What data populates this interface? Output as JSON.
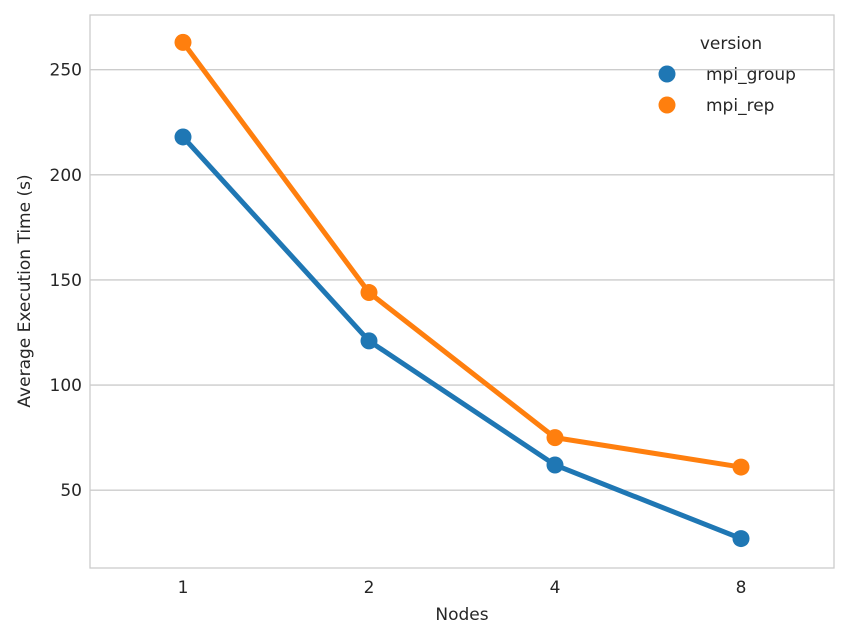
{
  "chart_data": {
    "type": "line",
    "categories": [
      "1",
      "2",
      "4",
      "8"
    ],
    "xlabel": "Nodes",
    "ylabel": "Average Execution Time (s)",
    "ylim": [
      13,
      276
    ],
    "yticks": [
      50,
      100,
      150,
      200,
      250
    ],
    "grid": "horizontal",
    "legend": {
      "title": "version",
      "placement": "top-right"
    },
    "series": [
      {
        "name": "mpi_group",
        "color": "#1f77b4",
        "values": [
          218,
          121,
          62,
          27
        ]
      },
      {
        "name": "mpi_rep",
        "color": "#ff7f0e",
        "values": [
          263,
          144,
          75,
          61
        ]
      }
    ]
  }
}
